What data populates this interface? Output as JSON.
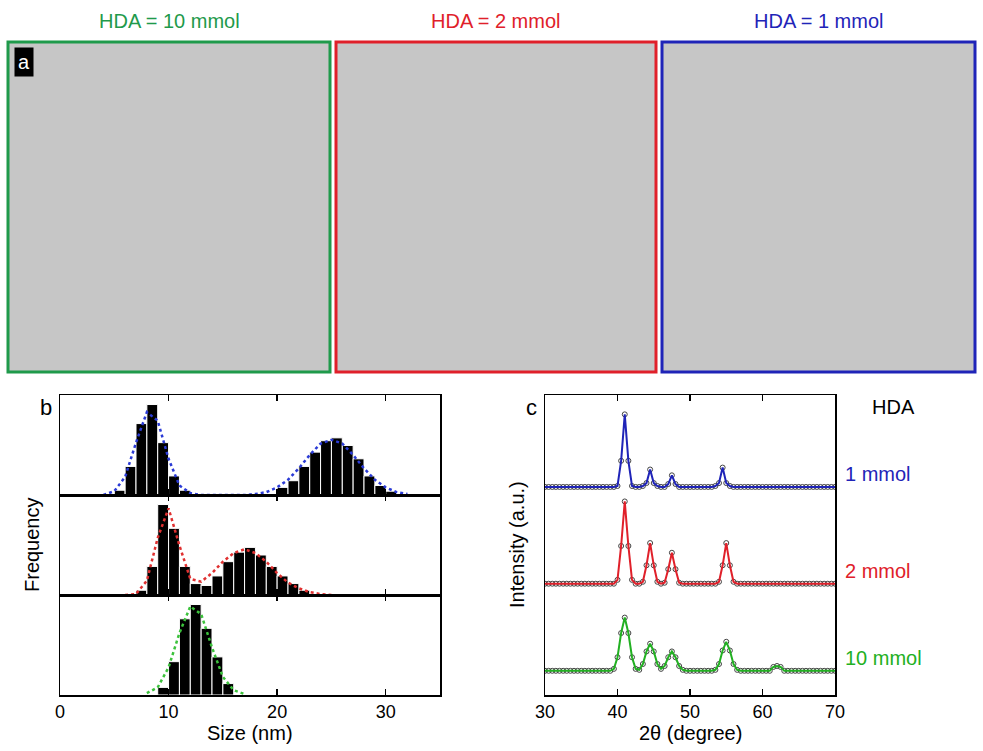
{
  "image_panels": {
    "label": "a",
    "panels": [
      {
        "title": "HDA = 10 mmol",
        "color": "#1f9a4b"
      },
      {
        "title": "HDA = 2 mmol",
        "color": "#e0202a"
      },
      {
        "title": "HDA = 1 mmol",
        "color": "#1f24b8"
      }
    ]
  },
  "chart_data": [
    {
      "type": "histogram",
      "panel": "b",
      "bins": [
        5,
        6,
        7,
        8,
        9,
        10,
        11,
        12,
        13,
        14,
        15,
        16,
        17,
        18,
        19,
        20,
        21,
        22,
        23,
        24,
        25,
        26,
        27,
        28,
        29,
        30,
        31
      ],
      "counts": [
        0.05,
        0.3,
        0.75,
        0.95,
        0.55,
        0.2,
        0.05,
        0,
        0,
        0,
        0,
        0,
        0,
        0,
        0,
        0.08,
        0.15,
        0.3,
        0.45,
        0.57,
        0.6,
        0.52,
        0.38,
        0.2,
        0.1,
        0.04
      ],
      "color": "#000000",
      "fit": {
        "x": [
          4,
          5,
          6,
          7,
          8,
          9,
          10,
          11,
          12,
          13,
          14,
          15,
          16,
          17,
          18,
          19,
          20,
          21,
          22,
          23,
          24,
          25,
          26,
          27,
          28,
          29,
          30,
          31,
          32
        ],
        "values": [
          0,
          0.04,
          0.19,
          0.55,
          0.87,
          0.78,
          0.38,
          0.1,
          0.02,
          0,
          0,
          0,
          0,
          0,
          0.01,
          0.03,
          0.08,
          0.16,
          0.28,
          0.42,
          0.54,
          0.58,
          0.54,
          0.42,
          0.28,
          0.16,
          0.08,
          0.03,
          0.01
        ],
        "color": "#2b3bd6",
        "line_style": "dot"
      },
      "xlim": [
        0,
        35
      ],
      "xticks": [
        0,
        10,
        20,
        30
      ],
      "ylim": [
        0,
        1.05
      ],
      "tick_labels": false
    },
    {
      "type": "histogram",
      "y_label": "Frequency",
      "bins": [
        7,
        8,
        9,
        10,
        11,
        12,
        13,
        14,
        15,
        16,
        17,
        18,
        19,
        20,
        21,
        22,
        23
      ],
      "counts": [
        0.05,
        0.3,
        0.95,
        0.7,
        0.3,
        0.12,
        0.1,
        0.2,
        0.35,
        0.45,
        0.5,
        0.42,
        0.3,
        0.2,
        0.12,
        0.05
      ],
      "color": "#000000",
      "fit": {
        "x": [
          6,
          7,
          8,
          9,
          10,
          11,
          12,
          13,
          14,
          15,
          16,
          17,
          18,
          19,
          20,
          21,
          22,
          23,
          24,
          25
        ],
        "values": [
          0,
          0.01,
          0.15,
          0.6,
          0.91,
          0.52,
          0.17,
          0.14,
          0.23,
          0.35,
          0.44,
          0.48,
          0.44,
          0.35,
          0.23,
          0.13,
          0.07,
          0.03,
          0.01,
          0
        ],
        "color": "#e03030",
        "line_style": "dot"
      },
      "xlim": [
        0,
        35
      ],
      "xticks": [
        0,
        10,
        20,
        30
      ],
      "ylim": [
        0,
        1.05
      ],
      "tick_labels": false
    },
    {
      "type": "histogram",
      "x_label": "Size (nm)",
      "bins": [
        9,
        10,
        11,
        12,
        13,
        14,
        15,
        16
      ],
      "counts": [
        0.08,
        0.35,
        0.8,
        0.95,
        0.7,
        0.4,
        0.12
      ],
      "color": "#000000",
      "fit": {
        "x": [
          8,
          9,
          10,
          11,
          12,
          13,
          14,
          15,
          16,
          17
        ],
        "values": [
          0.02,
          0.08,
          0.29,
          0.65,
          0.93,
          0.85,
          0.5,
          0.19,
          0.05,
          0.01
        ],
        "color": "#3cc23c",
        "line_style": "dot"
      },
      "xlim": [
        0,
        35
      ],
      "xticks": [
        0,
        10,
        20,
        30
      ],
      "ylim": [
        0,
        1.05
      ],
      "tick_labels": "x"
    },
    {
      "type": "line",
      "panel": "c",
      "x_label": "2θ (degree)",
      "y_label": "Intensity (a.u.)",
      "annotations": [
        "HDA"
      ],
      "x": [
        30,
        30.5,
        31,
        31.5,
        32,
        32.5,
        33,
        33.5,
        34,
        34.5,
        35,
        35.5,
        36,
        36.5,
        37,
        37.5,
        38,
        38.5,
        39,
        39.5,
        40,
        40.5,
        41,
        41.5,
        42,
        42.5,
        43,
        43.5,
        44,
        44.5,
        45,
        45.5,
        46,
        46.5,
        47,
        47.5,
        48,
        48.5,
        49,
        49.5,
        50,
        50.5,
        51,
        51.5,
        52,
        52.5,
        53,
        53.5,
        54,
        54.5,
        55,
        55.5,
        56,
        56.5,
        57,
        57.5,
        58,
        58.5,
        59,
        59.5,
        60,
        60.5,
        61,
        61.5,
        62,
        62.5,
        63,
        63.5,
        64,
        64.5,
        65,
        65.5,
        66,
        66.5,
        67,
        67.5,
        68,
        68.5,
        69,
        69.5,
        70
      ],
      "series": [
        {
          "name": "1 mmol",
          "color": "#1f24b8",
          "marker": "circle-open",
          "line_style": "solid",
          "values": [
            2,
            2,
            2,
            2,
            2,
            2,
            2,
            2,
            2,
            2,
            2,
            2,
            2,
            2,
            2,
            2,
            2,
            2,
            2,
            2,
            2.01,
            2.27,
            2.75,
            2.27,
            2.01,
            2,
            2,
            2.01,
            2.04,
            2.18,
            2.04,
            2.01,
            2,
            2,
            2.03,
            2.12,
            2.03,
            2,
            2,
            2,
            2,
            2,
            2,
            2,
            2,
            2,
            2,
            2.01,
            2.04,
            2.2,
            2.04,
            2.01,
            2,
            2,
            2,
            2,
            2,
            2,
            2,
            2,
            2,
            2,
            2,
            2,
            2,
            2,
            2,
            2,
            2,
            2,
            2,
            2,
            2,
            2,
            2,
            2,
            2,
            2,
            2,
            2,
            2
          ]
        },
        {
          "name": "2 mmol",
          "color": "#e0202a",
          "marker": "circle-open",
          "line_style": "solid",
          "values": [
            1,
            1,
            1,
            1,
            1,
            1,
            1,
            1,
            1,
            1,
            1,
            1,
            1,
            1,
            1,
            1,
            1,
            1,
            1,
            1,
            1.04,
            1.39,
            1.85,
            1.39,
            1.04,
            1,
            1,
            1.02,
            1.19,
            1.42,
            1.19,
            1.02,
            1,
            1.01,
            1.15,
            1.32,
            1.15,
            1.01,
            1,
            1,
            1,
            1,
            1,
            1,
            1,
            1,
            1,
            1,
            1.02,
            1.19,
            1.42,
            1.19,
            1.02,
            1,
            1,
            1,
            1,
            1,
            1,
            1,
            1,
            1,
            1,
            1,
            1,
            1,
            1,
            1,
            1,
            1,
            1,
            1,
            1,
            1,
            1,
            1,
            1,
            1,
            1,
            1,
            1
          ]
        },
        {
          "name": "10 mmol",
          "color": "#22b022",
          "marker": "circle-open",
          "line_style": "solid",
          "values": [
            0.1,
            0.1,
            0.1,
            0.1,
            0.1,
            0.1,
            0.1,
            0.1,
            0.1,
            0.1,
            0.1,
            0.1,
            0.1,
            0.1,
            0.1,
            0.1,
            0.1,
            0.1,
            0.1,
            0.12,
            0.24,
            0.49,
            0.65,
            0.49,
            0.24,
            0.12,
            0.11,
            0.17,
            0.3,
            0.38,
            0.3,
            0.17,
            0.12,
            0.15,
            0.24,
            0.3,
            0.24,
            0.15,
            0.11,
            0.1,
            0.1,
            0.1,
            0.1,
            0.1,
            0.1,
            0.1,
            0.1,
            0.11,
            0.17,
            0.31,
            0.4,
            0.31,
            0.17,
            0.11,
            0.1,
            0.1,
            0.1,
            0.1,
            0.1,
            0.1,
            0.1,
            0.1,
            0.1,
            0.14,
            0.15,
            0.14,
            0.1,
            0.1,
            0.1,
            0.1,
            0.1,
            0.1,
            0.1,
            0.1,
            0.1,
            0.1,
            0.1,
            0.1,
            0.1,
            0.1,
            0.1
          ]
        }
      ],
      "xlim": [
        30,
        70
      ],
      "xticks": [
        30,
        40,
        50,
        60,
        70
      ],
      "ylim": [
        -0.15,
        2.95
      ],
      "tick_labels": "x"
    }
  ]
}
